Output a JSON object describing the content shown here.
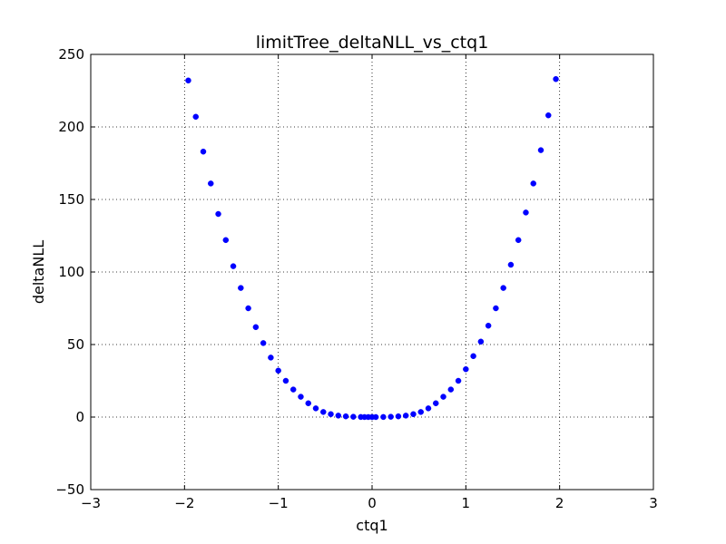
{
  "chart_data": {
    "type": "scatter",
    "title": "limitTree_deltaNLL_vs_ctq1",
    "xlabel": "ctq1",
    "ylabel": "deltaNLL",
    "xlim": [
      -3,
      3
    ],
    "ylim": [
      -50,
      250
    ],
    "xticks": [
      -3,
      -2,
      -1,
      0,
      1,
      2,
      3
    ],
    "xtick_labels": [
      "−3",
      "−2",
      "−1",
      "0",
      "1",
      "2",
      "3"
    ],
    "yticks": [
      -50,
      0,
      50,
      100,
      150,
      200,
      250
    ],
    "ytick_labels": [
      "−50",
      "0",
      "50",
      "100",
      "150",
      "200",
      "250"
    ],
    "grid": true,
    "marker_color": "#0000ff",
    "series": [
      {
        "x": [
          -1.96,
          -1.88,
          -1.8,
          -1.72,
          -1.64,
          -1.56,
          -1.48,
          -1.4,
          -1.32,
          -1.24,
          -1.16,
          -1.08,
          -1.0,
          -0.92,
          -0.84,
          -0.76,
          -0.68,
          -0.6,
          -0.52,
          -0.44,
          -0.36,
          -0.28,
          -0.2,
          -0.12,
          -0.08,
          -0.04,
          0.0,
          0.04,
          0.12,
          0.2,
          0.28,
          0.36,
          0.44,
          0.52,
          0.6,
          0.68,
          0.76,
          0.84,
          0.92,
          1.0,
          1.08,
          1.16,
          1.24,
          1.32,
          1.4,
          1.48,
          1.56,
          1.64,
          1.72,
          1.8,
          1.88,
          1.96
        ],
        "y": [
          232,
          207,
          183,
          161,
          140,
          122,
          104,
          89,
          75,
          62,
          51,
          41,
          32,
          25,
          19,
          14,
          9.5,
          6,
          3.5,
          2,
          1,
          0.5,
          0.2,
          0.05,
          0.02,
          0.01,
          0.0,
          0.01,
          0.05,
          0.2,
          0.5,
          1,
          2,
          3.5,
          6,
          9.5,
          14,
          19,
          25,
          33,
          42,
          52,
          63,
          75,
          89,
          105,
          122,
          141,
          161,
          184,
          208,
          233
        ]
      }
    ]
  }
}
